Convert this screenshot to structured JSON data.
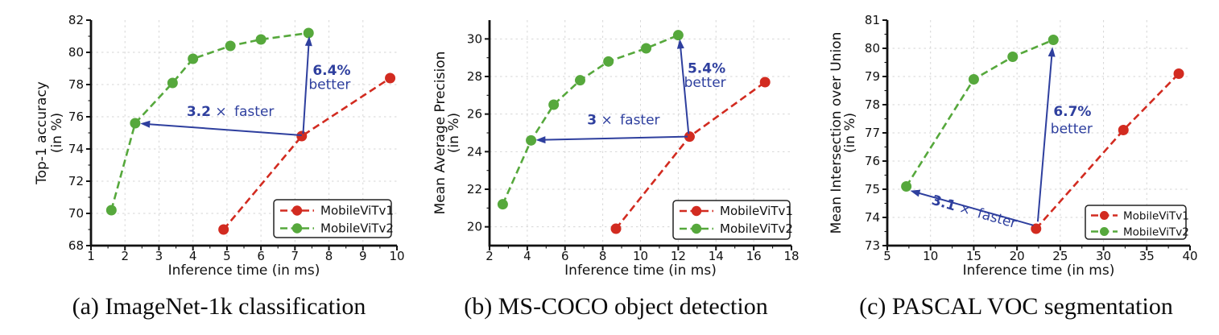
{
  "colors": {
    "mobilevitv1": "#d22b20",
    "mobilevitv2": "#56a83c",
    "annotation_blue": "#2e3f9e",
    "grid": "#d6d6d6",
    "axis": "#111111",
    "legend_border": "#222222",
    "background": "#ffffff"
  },
  "legend": {
    "items": [
      "MobileViTv1",
      "MobileViTv2"
    ],
    "position": "lower right"
  },
  "chart_data": [
    {
      "type": "line",
      "caption": "(a) ImageNet-1k classification",
      "xlabel": "Inference time (in ms)",
      "ylabel_lines": [
        "Top-1 accuracy",
        "(in %)"
      ],
      "xlim": [
        1,
        10
      ],
      "ylim": [
        68,
        82
      ],
      "xticks": [
        1,
        2,
        3,
        4,
        5,
        6,
        7,
        8,
        9,
        10
      ],
      "yticks": [
        68,
        70,
        72,
        74,
        76,
        78,
        80,
        82
      ],
      "grid": true,
      "series": [
        {
          "name": "MobileViTv1",
          "color": "mobilevitv1",
          "points": [
            [
              4.9,
              69.0
            ],
            [
              7.2,
              74.8
            ],
            [
              9.8,
              78.4
            ]
          ]
        },
        {
          "name": "MobileViTv2",
          "color": "mobilevitv2",
          "points": [
            [
              1.6,
              70.2
            ],
            [
              2.3,
              75.6
            ],
            [
              3.4,
              78.1
            ],
            [
              4.0,
              79.6
            ],
            [
              5.1,
              80.4
            ],
            [
              6.0,
              80.8
            ],
            [
              7.4,
              81.2
            ]
          ]
        }
      ],
      "annotations": [
        {
          "inline": true,
          "parts": [
            {
              "t": "3.2",
              "b": 1
            },
            {
              "t": " × ",
              "b": 0
            },
            {
              "t": "faster",
              "b": 0,
              "dx": 4
            }
          ],
          "pos": [
            5.1,
            76.05
          ],
          "rotate": 0,
          "arrow": {
            "from": [
              7.2,
              74.85
            ],
            "to": [
              2.45,
              75.58
            ]
          }
        },
        {
          "inline": false,
          "lines": [
            {
              "t": "6.4%",
              "b": 1
            },
            {
              "t": "better",
              "b": 0
            }
          ],
          "pos": [
            8.08,
            78.6
          ],
          "pos2": [
            8.02,
            77.72
          ],
          "arrow": {
            "from": [
              7.24,
              74.95
            ],
            "to": [
              7.42,
              81.0
            ]
          }
        }
      ]
    },
    {
      "type": "line",
      "caption": "(b) MS-COCO object detection",
      "xlabel": "Inference time (in ms)",
      "ylabel_lines": [
        "Mean Average Precision",
        "(in %)"
      ],
      "xlim": [
        2,
        18
      ],
      "ylim": [
        19,
        31
      ],
      "xticks": [
        2,
        4,
        6,
        8,
        10,
        12,
        14,
        16,
        18
      ],
      "yticks": [
        20,
        22,
        24,
        26,
        28,
        30
      ],
      "grid": true,
      "series": [
        {
          "name": "MobileViTv1",
          "color": "mobilevitv1",
          "points": [
            [
              8.7,
              19.9
            ],
            [
              12.6,
              24.8
            ],
            [
              16.6,
              27.7
            ]
          ]
        },
        {
          "name": "MobileViTv2",
          "color": "mobilevitv2",
          "points": [
            [
              2.7,
              21.2
            ],
            [
              4.2,
              24.6
            ],
            [
              5.4,
              26.5
            ],
            [
              6.8,
              27.8
            ],
            [
              8.3,
              28.8
            ],
            [
              10.3,
              29.5
            ],
            [
              12.0,
              30.2
            ]
          ]
        }
      ],
      "annotations": [
        {
          "inline": true,
          "parts": [
            {
              "t": "3",
              "b": 1
            },
            {
              "t": " × ",
              "b": 0
            },
            {
              "t": "faster",
              "b": 0,
              "dx": 4
            }
          ],
          "pos": [
            9.1,
            25.45
          ],
          "rotate": 0,
          "arrow": {
            "from": [
              12.5,
              24.8
            ],
            "to": [
              4.45,
              24.62
            ]
          }
        },
        {
          "inline": false,
          "lines": [
            {
              "t": "5.4%",
              "b": 1
            },
            {
              "t": "better",
              "b": 0
            }
          ],
          "pos": [
            13.5,
            28.2
          ],
          "pos2": [
            13.42,
            27.45
          ],
          "arrow": {
            "from": [
              12.55,
              24.95
            ],
            "to": [
              12.08,
              30.0
            ]
          }
        }
      ]
    },
    {
      "type": "line",
      "caption": "(c) PASCAL VOC segmentation",
      "xlabel": "Inference time (in ms)",
      "ylabel_lines": [
        "Mean Intersection over Union",
        "(in %)"
      ],
      "xlim": [
        5,
        40
      ],
      "ylim": [
        73,
        81
      ],
      "xticks": [
        5,
        10,
        15,
        20,
        25,
        30,
        35,
        40
      ],
      "yticks": [
        73,
        74,
        75,
        76,
        77,
        78,
        79,
        80,
        81
      ],
      "grid": true,
      "series": [
        {
          "name": "MobileViTv1",
          "color": "mobilevitv1",
          "points": [
            [
              22.2,
              73.6
            ],
            [
              32.3,
              77.1
            ],
            [
              38.7,
              79.1
            ]
          ]
        },
        {
          "name": "MobileViTv2",
          "color": "mobilevitv2",
          "points": [
            [
              7.2,
              75.1
            ],
            [
              15.0,
              78.9
            ],
            [
              19.5,
              79.7
            ],
            [
              24.2,
              80.3
            ]
          ]
        }
      ],
      "annotations": [
        {
          "inline": true,
          "parts": [
            {
              "t": "3.1",
              "b": 1
            },
            {
              "t": " × ",
              "b": 0
            },
            {
              "t": "faster",
              "b": 0,
              "dx": 4
            }
          ],
          "pos": [
            14.9,
            74.05
          ],
          "rotate": 16,
          "arrow": {
            "from": [
              21.9,
              73.72
            ],
            "to": [
              7.65,
              74.95
            ]
          }
        },
        {
          "inline": false,
          "lines": [
            {
              "t": "6.7%",
              "b": 1
            },
            {
              "t": "better",
              "b": 0
            }
          ],
          "pos": [
            26.4,
            77.6
          ],
          "pos2": [
            26.3,
            76.98
          ],
          "arrow": {
            "from": [
              22.4,
              73.85
            ],
            "to": [
              24.1,
              80.05
            ]
          }
        }
      ]
    }
  ]
}
